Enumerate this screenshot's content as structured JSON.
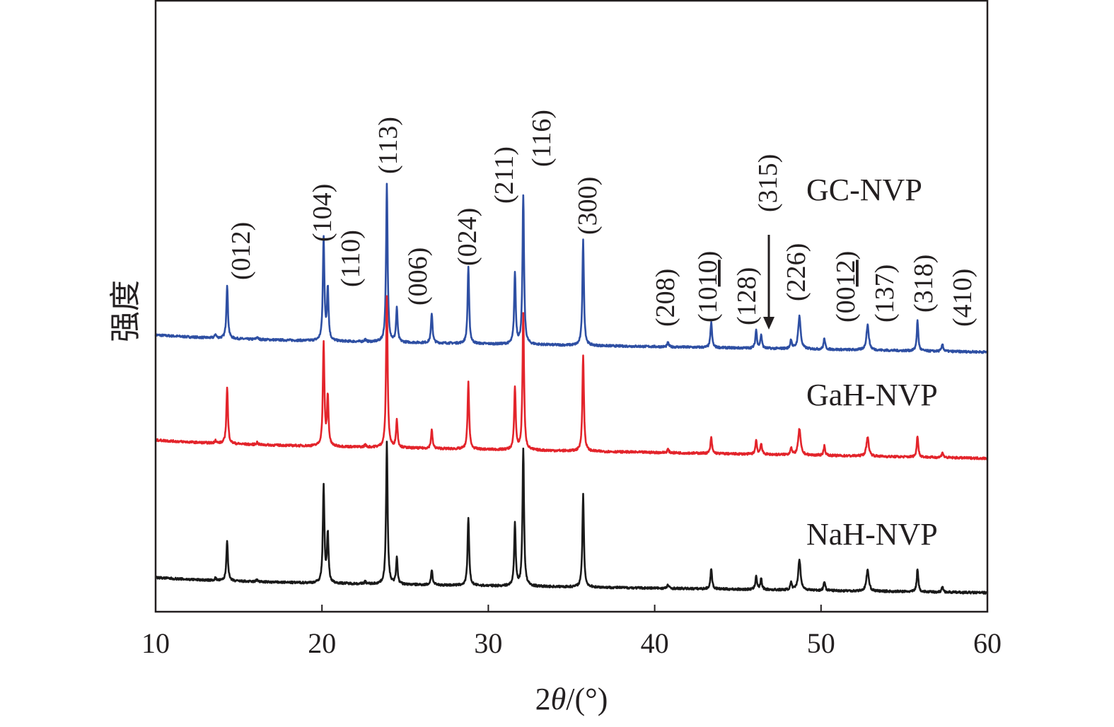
{
  "chart_data": {
    "type": "line",
    "xlabel_prefix": "2",
    "xlabel_symbol": "θ",
    "xlabel_suffix": "/(°)",
    "ylabel": "强度",
    "xlim": [
      10,
      60
    ],
    "ylim": [
      0,
      100
    ],
    "xticks": [
      10,
      20,
      30,
      40,
      50,
      60
    ],
    "yticks_shown": false,
    "grid": false,
    "peak_positions": [
      13.6,
      14.3,
      16.1,
      20.1,
      20.35,
      22.6,
      23.9,
      24.5,
      26.6,
      28.8,
      31.6,
      32.1,
      35.7,
      40.8,
      43.4,
      46.1,
      46.4,
      48.2,
      48.7,
      50.2,
      52.8,
      55.8,
      57.3
    ],
    "series": [
      {
        "name": "GC-NVP",
        "color": "#2e4fa3",
        "baseline": [
          44.7,
          42.5
        ],
        "peak_heights": [
          0.6,
          8.8,
          0.4,
          16.9,
          8.6,
          0.4,
          25.8,
          5.5,
          4.9,
          12.6,
          11.7,
          24.4,
          17.2,
          0.7,
          4.2,
          3.0,
          2.2,
          1.5,
          5.4,
          1.8,
          4.1,
          4.9,
          1.2
        ]
      },
      {
        "name": "GaH-NVP",
        "color": "#e3242b",
        "baseline": [
          27.5,
          25.1
        ],
        "peak_heights": [
          0.5,
          9.3,
          0.4,
          16.8,
          8.0,
          0.4,
          24.9,
          4.5,
          3.0,
          11.0,
          10.3,
          22.3,
          15.7,
          0.6,
          2.6,
          2.3,
          1.8,
          1.2,
          4.3,
          1.6,
          3.1,
          3.5,
          0.9
        ]
      },
      {
        "name": "NaH-NVP",
        "color": "#1a1a1a",
        "baseline": [
          5.0,
          3.1
        ],
        "peak_heights": [
          0.4,
          6.7,
          0.4,
          16.0,
          8.0,
          0.4,
          23.4,
          4.3,
          2.5,
          11.2,
          10.3,
          22.5,
          15.1,
          0.6,
          3.4,
          2.3,
          1.8,
          1.2,
          5.0,
          1.5,
          3.5,
          3.8,
          0.9
        ]
      }
    ],
    "annotations": [
      {
        "pre": "(012)",
        "ul": "",
        "post": ""
      },
      {
        "pre": "(104)",
        "ul": "",
        "post": ""
      },
      {
        "pre": "(110)",
        "ul": "",
        "post": ""
      },
      {
        "pre": "(113)",
        "ul": "",
        "post": ""
      },
      {
        "pre": "(006)",
        "ul": "",
        "post": ""
      },
      {
        "pre": "(024)",
        "ul": "",
        "post": ""
      },
      {
        "pre": "(211)",
        "ul": "",
        "post": ""
      },
      {
        "pre": "(116)",
        "ul": "",
        "post": ""
      },
      {
        "pre": "(300)",
        "ul": "",
        "post": ""
      },
      {
        "pre": "(208)",
        "ul": "",
        "post": ""
      },
      {
        "pre": "(10",
        "ul": "10",
        "post": ")"
      },
      {
        "pre": "(128)",
        "ul": "",
        "post": ""
      },
      {
        "pre": "(315)",
        "ul": "",
        "post": ""
      },
      {
        "pre": "(226)",
        "ul": "",
        "post": ""
      },
      {
        "pre": "(00",
        "ul": "12",
        "post": ")"
      },
      {
        "pre": "(137)",
        "ul": "",
        "post": ""
      },
      {
        "pre": "(318)",
        "ul": "",
        "post": ""
      },
      {
        "pre": "(410)",
        "ul": "",
        "post": ""
      }
    ]
  }
}
